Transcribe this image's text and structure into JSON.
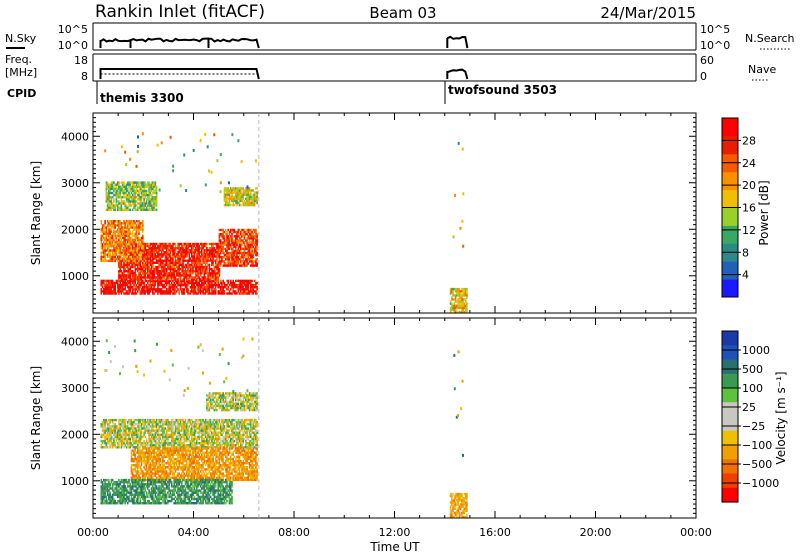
{
  "header": {
    "station": "Rankin Inlet (fitACF)",
    "beam": "Beam 03",
    "date": "24/Mar/2015"
  },
  "strips": {
    "nsky": {
      "label": "N.Sky",
      "tick_top": "10^5",
      "tick_bottom": "10^0",
      "right_tick_top": "10^5",
      "right_tick_bottom": "10^0",
      "right_label": "N.Search"
    },
    "freq": {
      "label_line1": "Freq.",
      "label_line2": "[MHz]",
      "tick_top": "18",
      "tick_bottom": "8",
      "right_tick_top": "60",
      "right_tick_bottom": "0",
      "right_label": "Nave"
    },
    "cpid": {
      "label": "CPID",
      "modes": [
        "themis 3300",
        "twofsound 3503"
      ]
    }
  },
  "colors": {
    "power": [
      "#1a1aff",
      "#2060b8",
      "#2a8a88",
      "#3aa860",
      "#9ad02a",
      "#f0c000",
      "#f89000",
      "#f85a00",
      "#e81e00",
      "#ff0000"
    ],
    "velocity": [
      "#ff0000",
      "#f04000",
      "#f07000",
      "#f0a000",
      "#f0c000",
      "#c8c8c0",
      "#c8c8c0",
      "#60c040",
      "#3a9a50",
      "#2a7070",
      "#2050b8",
      "#1a3aa8"
    ]
  },
  "chart_data": [
    {
      "type": "heatmap",
      "panel": "power",
      "ylabel": "Slant Range [km]",
      "xlabel": "Time UT",
      "x_ticks": [
        "00:00",
        "04:00",
        "08:00",
        "12:00",
        "16:00",
        "20:00",
        "00:00"
      ],
      "xlim_hours": [
        0,
        24
      ],
      "ylim_km": [
        200,
        4500
      ],
      "y_ticks": [
        1000,
        2000,
        3000,
        4000
      ],
      "colorbar": {
        "label": "Power [dB]",
        "ticks": [
          4,
          8,
          12,
          16,
          20,
          24,
          28
        ],
        "range": [
          0,
          32
        ]
      },
      "data_periods_hours": [
        [
          0.3,
          6.6
        ],
        [
          14.1,
          14.9
        ]
      ],
      "echo_regions": [
        {
          "t": [
            0.3,
            6.5
          ],
          "range_km": [
            600,
            900
          ],
          "power_db": 30
        },
        {
          "t": [
            1.0,
            5.0
          ],
          "range_km": [
            900,
            1700
          ],
          "power_db": 28
        },
        {
          "t": [
            0.3,
            2.0
          ],
          "range_km": [
            1300,
            2200
          ],
          "power_db": 22
        },
        {
          "t": [
            5.0,
            6.5
          ],
          "range_km": [
            1200,
            2000
          ],
          "power_db": 26
        },
        {
          "t": [
            0.5,
            2.5
          ],
          "range_km": [
            2400,
            3000
          ],
          "power_db": 14
        },
        {
          "t": [
            5.2,
            6.5
          ],
          "range_km": [
            2500,
            2900
          ],
          "power_db": 16
        },
        {
          "t": [
            14.2,
            14.9
          ],
          "range_km": [
            200,
            700
          ],
          "power_db": 18
        }
      ]
    },
    {
      "type": "heatmap",
      "panel": "velocity",
      "ylabel": "Slant Range [km]",
      "xlabel": "Time UT",
      "x_ticks": [
        "00:00",
        "04:00",
        "08:00",
        "12:00",
        "16:00",
        "20:00",
        "00:00"
      ],
      "xlim_hours": [
        0,
        24
      ],
      "ylim_km": [
        200,
        4500
      ],
      "y_ticks": [
        1000,
        2000,
        3000,
        4000
      ],
      "colorbar": {
        "label": "Velocity [m s⁻¹]",
        "ticks": [
          "1000",
          "500",
          "100",
          "25",
          "−25",
          "−100",
          "−500",
          "−1000"
        ]
      },
      "echo_regions": [
        {
          "t": [
            0.3,
            6.5
          ],
          "range_km": [
            1700,
            2300
          ],
          "velocity": 0
        },
        {
          "t": [
            4.5,
            6.5
          ],
          "range_km": [
            2500,
            2900
          ],
          "velocity": 0
        },
        {
          "t": [
            1.5,
            6.5
          ],
          "range_km": [
            1000,
            1700
          ],
          "velocity": -200
        },
        {
          "t": [
            0.3,
            5.5
          ],
          "range_km": [
            500,
            1000
          ],
          "velocity": 200
        },
        {
          "t": [
            14.2,
            14.9
          ],
          "range_km": [
            200,
            700
          ],
          "velocity": -150
        }
      ]
    }
  ]
}
